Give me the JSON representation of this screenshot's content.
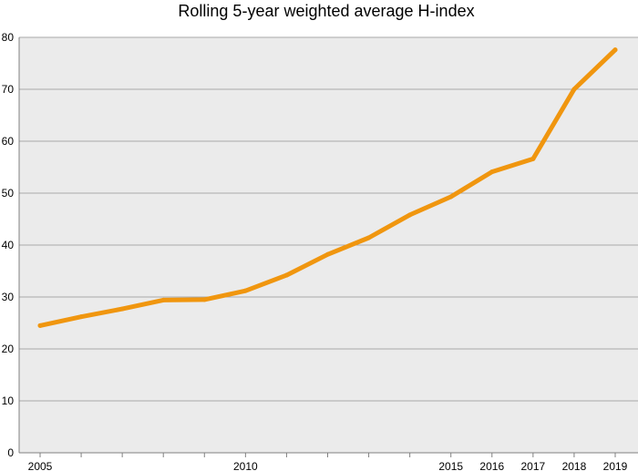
{
  "colors": {
    "plot_background": "#ebebeb",
    "gridline": "#a8a8a8",
    "axis": "#808080",
    "series_line": "#f0960f"
  },
  "chart_data": {
    "type": "line",
    "title": "Rolling 5-year weighted average H-index",
    "xlabel": "",
    "ylabel": "",
    "grid": true,
    "legend": "none",
    "ylim": [
      0,
      80
    ],
    "xlim": [
      2005,
      2019
    ],
    "y_ticks": [
      0,
      10,
      20,
      30,
      40,
      50,
      60,
      70,
      80
    ],
    "x_ticks": [
      2005,
      2006,
      2007,
      2008,
      2009,
      2010,
      2011,
      2012,
      2013,
      2014,
      2015,
      2016,
      2017,
      2018,
      2019
    ],
    "x_tick_labels": [
      {
        "x": 2005,
        "label": "2005"
      },
      {
        "x": 2010,
        "label": "2010"
      },
      {
        "x": 2015,
        "label": "2015"
      },
      {
        "x": 2016,
        "label": "2016"
      },
      {
        "x": 2017,
        "label": "2017"
      },
      {
        "x": 2018,
        "label": "2018"
      },
      {
        "x": 2019,
        "label": "2019"
      }
    ],
    "series": [
      {
        "x": [
          2005,
          2006,
          2007,
          2008,
          2009,
          2010,
          2011,
          2012,
          2013,
          2014,
          2015,
          2016,
          2017,
          2018,
          2019
        ],
        "values": [
          24.5,
          26.2,
          27.7,
          29.4,
          29.5,
          31.2,
          34.2,
          38.2,
          41.4,
          45.8,
          49.3,
          54.1,
          56.6,
          70.0,
          77.6
        ]
      }
    ]
  }
}
